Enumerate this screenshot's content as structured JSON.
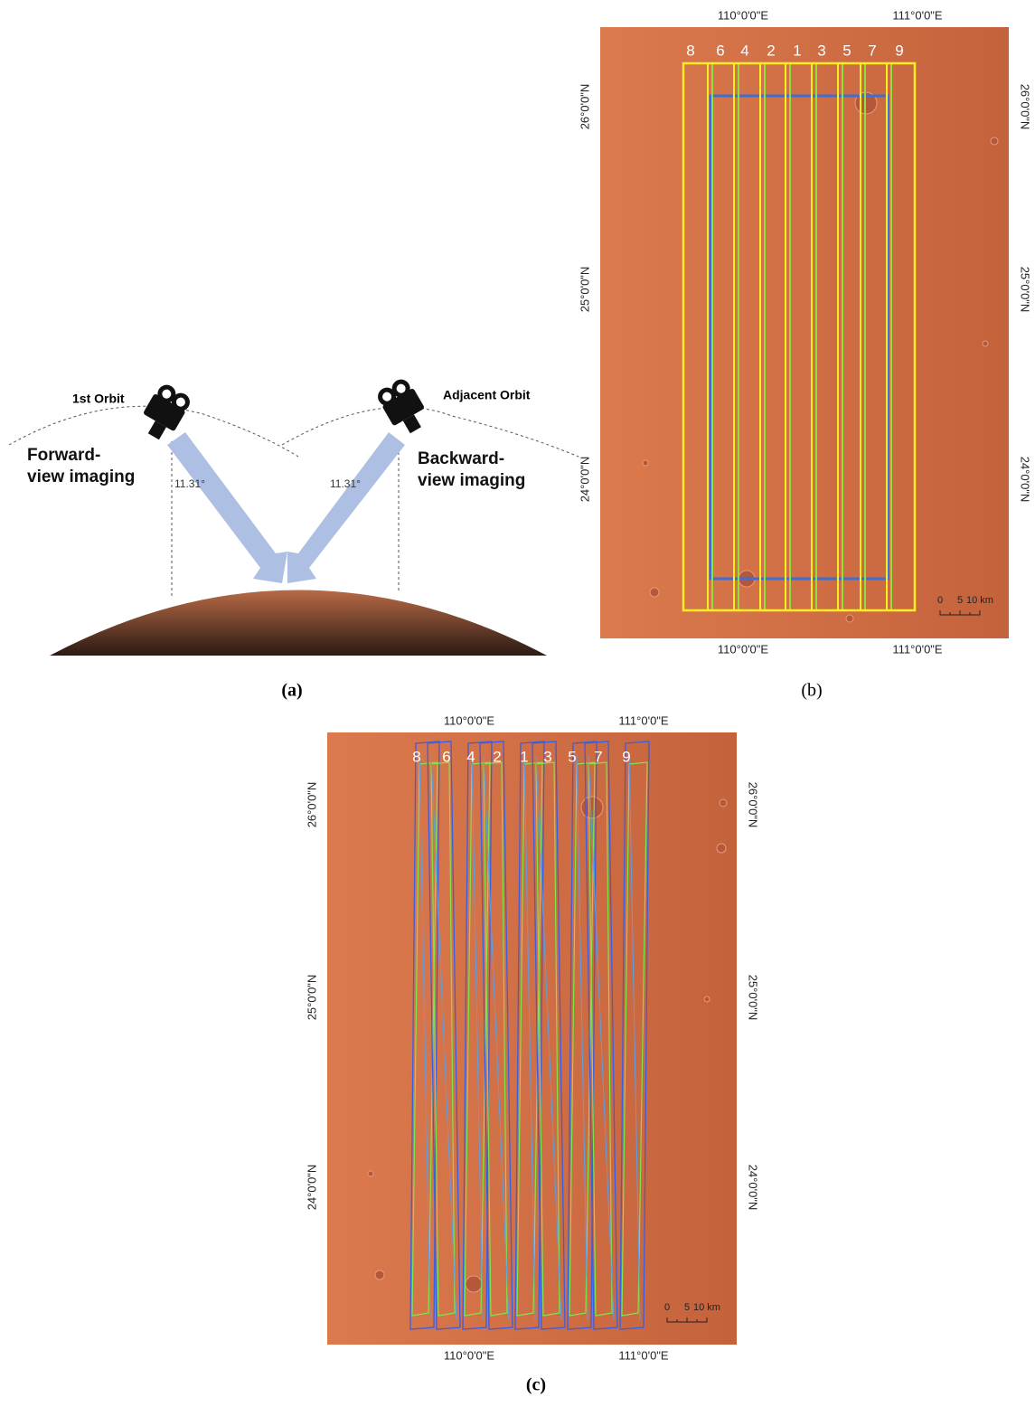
{
  "panel_a": {
    "orbit_1": "1st Orbit",
    "orbit_2": "Adjacent Orbit",
    "forward": [
      "Forward-",
      "view imaging"
    ],
    "backward": [
      "Backward-",
      "view imaging"
    ],
    "angle_1": "11.31°",
    "angle_2": "11.31°",
    "caption": "(a)"
  },
  "panel_b": {
    "lon_labels": [
      "110°0'0\"E",
      "111°0'0\"E"
    ],
    "lat_labels": [
      "26°0'0\"N",
      "25°0'0\"N",
      "24°0'0\"N"
    ],
    "strip_labels": [
      "8",
      "6",
      "4",
      "2",
      "1",
      "3",
      "5",
      "7",
      "9"
    ],
    "scale_labels": [
      "0",
      "5",
      "10 km"
    ],
    "caption": "(b)"
  },
  "panel_c": {
    "lon_labels": [
      "110°0'0\"E",
      "111°0'0\"E"
    ],
    "lat_labels": [
      "26°0'0\"N",
      "25°0'0\"N",
      "24°0'0\"N"
    ],
    "strip_labels": [
      "8",
      "6",
      "4",
      "2",
      "1",
      "3",
      "5",
      "7",
      "9"
    ],
    "scale_labels": [
      "0",
      "5",
      "10 km"
    ],
    "caption": "(c)"
  }
}
